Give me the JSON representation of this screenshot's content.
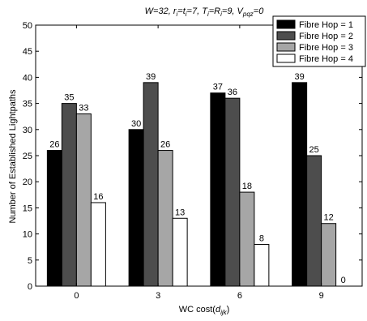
{
  "chart_data": {
    "type": "bar",
    "title": "W=32, r_i=t_i=7, T_i=R_i=9, V_pqz=0",
    "title_parts": {
      "W": "W",
      "w_val": "=32, ",
      "r": "r",
      "r_sub": "i",
      "eq1": "=",
      "t": "t",
      "t_sub": "i",
      "t_val": "=7, ",
      "T": "T",
      "T_sub": "i",
      "eq2": "=",
      "R": "R",
      "R_sub": "i",
      "R_val": "=9, ",
      "V": "V",
      "V_sub": "pqz",
      "V_val": "=0"
    },
    "xlabel": "WC cost(d_ijk)",
    "xlabel_parts": {
      "main": "WC cost(",
      "d": "d",
      "sub": "ijk",
      "close": ")"
    },
    "ylabel": "Number of Established Lightpaths",
    "categories": [
      "0",
      "3",
      "6",
      "9"
    ],
    "ylim": [
      0,
      50
    ],
    "yticks": [
      "0",
      "5",
      "10",
      "15",
      "20",
      "25",
      "30",
      "35",
      "40",
      "45",
      "50"
    ],
    "series": [
      {
        "name": "Fibre Hop = 1",
        "color": "#000000",
        "values": [
          26,
          30,
          37,
          39
        ]
      },
      {
        "name": "Fibre Hop = 2",
        "color": "#4d4d4d",
        "values": [
          35,
          39,
          36,
          25
        ]
      },
      {
        "name": "Fibre Hop = 3",
        "color": "#a6a6a6",
        "values": [
          33,
          26,
          18,
          12
        ]
      },
      {
        "name": "Fibre Hop = 4",
        "color": "#ffffff",
        "values": [
          16,
          13,
          8,
          0
        ]
      }
    ],
    "grid": false,
    "legend_position": "top-right"
  }
}
